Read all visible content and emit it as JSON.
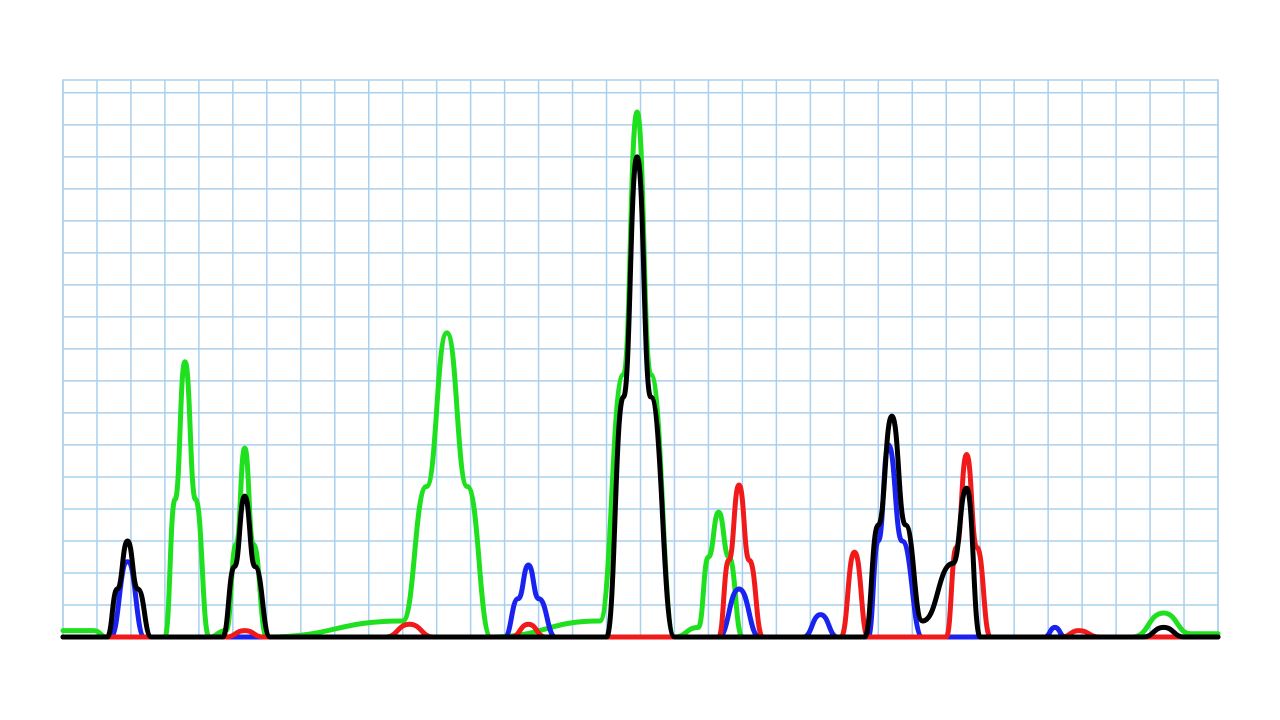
{
  "chart_data": {
    "type": "line",
    "xlim": [
      0,
      34
    ],
    "ylim": [
      0,
      17.4
    ],
    "xticks": [
      0,
      1,
      2,
      3,
      4,
      5,
      6,
      7,
      8,
      9,
      10,
      11,
      12,
      13,
      14,
      15,
      16,
      17,
      18,
      19,
      20,
      21,
      22,
      23,
      24,
      25,
      26,
      27,
      28,
      29,
      30,
      31,
      32,
      33,
      34
    ],
    "yticks": [
      0,
      1,
      2,
      3,
      4,
      5,
      6,
      7,
      8,
      9,
      10,
      11,
      12,
      13,
      14,
      15,
      16,
      17
    ],
    "grid": true,
    "grid_color": "#a9d0ee",
    "series": [
      {
        "color": "#1ee01e",
        "x": [
          0,
          0.9,
          1.3,
          3.0,
          3.3,
          3.59,
          3.9,
          4.3,
          4.8,
          5.1,
          5.35,
          5.6,
          6.0,
          10.0,
          10.7,
          11.3,
          11.9,
          12.6,
          15.8,
          16.5,
          16.9,
          17.3,
          18.0,
          18.7,
          19.0,
          19.3,
          19.6,
          20.0,
          31.5,
          32.4,
          33.2,
          34
        ],
        "values": [
          0.2,
          0.2,
          0,
          0,
          4.3,
          8.6,
          4.3,
          0,
          0.2,
          2.9,
          5.9,
          2.9,
          0,
          0.5,
          4.7,
          9.5,
          4.7,
          0,
          0.5,
          8.2,
          16.4,
          8.2,
          0,
          0.3,
          2.5,
          3.9,
          2.5,
          0,
          0,
          0.75,
          0.1,
          0.1
        ]
      },
      {
        "color": "#1a22f0",
        "x": [
          0,
          1.4,
          1.9,
          2.4,
          13.0,
          13.4,
          13.7,
          14.0,
          14.5,
          19.3,
          19.9,
          20.5,
          21.8,
          22.3,
          22.8,
          23.7,
          24.0,
          24.3,
          24.7,
          25.3,
          28.9,
          29.2,
          29.5,
          34
        ],
        "values": [
          0,
          0,
          2.35,
          0,
          0,
          1.2,
          2.25,
          1.2,
          0,
          0,
          1.5,
          0,
          0,
          0.7,
          0,
          0,
          3.0,
          6.0,
          3.0,
          0,
          0,
          0.3,
          0,
          0
        ]
      },
      {
        "color": "#f01a1a",
        "x": [
          0,
          4.8,
          5.35,
          5.9,
          9.5,
          10.2,
          10.9,
          13.2,
          13.7,
          14.2,
          19.3,
          19.6,
          19.9,
          20.2,
          20.6,
          22.9,
          23.3,
          23.7,
          26.0,
          26.3,
          26.6,
          26.9,
          27.3,
          29.4,
          29.9,
          30.5,
          34
        ],
        "values": [
          0,
          0,
          0.2,
          0,
          0,
          0.4,
          0,
          0,
          0.4,
          0,
          0,
          2.4,
          4.75,
          2.4,
          0,
          0,
          2.65,
          0,
          0,
          2.8,
          5.7,
          2.8,
          0,
          0,
          0.2,
          0,
          0
        ]
      },
      {
        "color": "#000000",
        "x": [
          0,
          1.3,
          1.6,
          1.9,
          2.2,
          2.6,
          4.7,
          5.05,
          5.35,
          5.65,
          6.1,
          16.0,
          16.5,
          16.9,
          17.3,
          18.0,
          23.6,
          24.0,
          24.4,
          24.8,
          25.3,
          26.2,
          26.6,
          27.0,
          31.8,
          32.4,
          33.0,
          34
        ],
        "values": [
          0,
          0,
          1.5,
          3.0,
          1.5,
          0,
          0,
          2.2,
          4.4,
          2.2,
          0,
          0,
          7.5,
          15.0,
          7.5,
          0,
          0,
          3.5,
          6.9,
          3.5,
          0.5,
          2.3,
          4.65,
          0,
          0,
          0.3,
          0,
          0
        ]
      }
    ]
  }
}
